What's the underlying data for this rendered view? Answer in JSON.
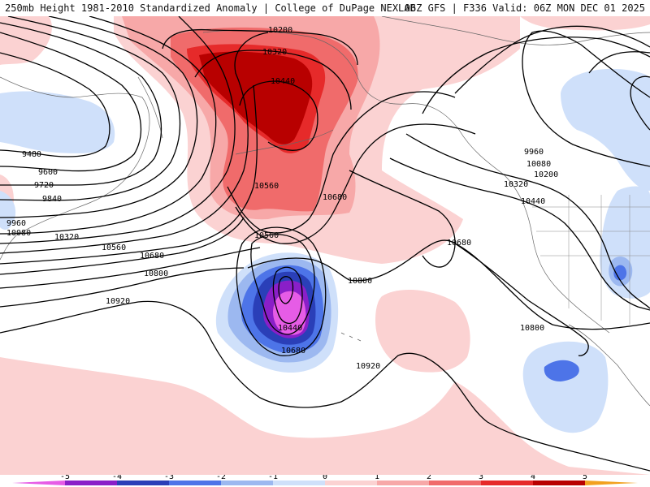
{
  "title": {
    "left": "250mb Height 1981-2010 Standardized Anomaly | College of DuPage NEXLAB",
    "right": "06Z GFS | F336 Valid: 06Z MON DEC 01 2025"
  },
  "colors": {
    "neg5": "#e65ce6",
    "neg4": "#8a1fc8",
    "neg3": "#2a3fb8",
    "neg2": "#4d74e8",
    "neg1": "#9cb8f0",
    "neg05": "#cfe0fa",
    "pos05": "#fbd2d2",
    "pos1": "#f7a8a8",
    "pos2": "#f06b6b",
    "pos3": "#e62a2a",
    "pos4": "#b80000",
    "pos5": "#f2a11f",
    "contour": "#000000",
    "coast": "#555555"
  },
  "contour_labels": [
    {
      "text": "10200",
      "id": "c10200-a"
    },
    {
      "text": "10320",
      "id": "c10320-a"
    },
    {
      "text": "10440",
      "id": "c10440-a"
    },
    {
      "text": "9480",
      "id": "c9480"
    },
    {
      "text": "9600",
      "id": "c9600"
    },
    {
      "text": "9720",
      "id": "c9720"
    },
    {
      "text": "9840",
      "id": "c9840"
    },
    {
      "text": "9960",
      "id": "c9960-w"
    },
    {
      "text": "10080",
      "id": "c10080-w"
    },
    {
      "text": "10320",
      "id": "c10320-w"
    },
    {
      "text": "10560",
      "id": "c10560-w"
    },
    {
      "text": "10680",
      "id": "c10680-w"
    },
    {
      "text": "10800",
      "id": "c10800-w"
    },
    {
      "text": "10920",
      "id": "c10920-w"
    },
    {
      "text": "10560",
      "id": "c10560-c"
    },
    {
      "text": "10680",
      "id": "c10680-c"
    },
    {
      "text": "10560",
      "id": "c10560-low"
    },
    {
      "text": "10440",
      "id": "c10440-low"
    },
    {
      "text": "10680",
      "id": "c10680-low"
    },
    {
      "text": "10800",
      "id": "c10800-c"
    },
    {
      "text": "10920",
      "id": "c10920-c"
    },
    {
      "text": "10680",
      "id": "c10680-e"
    },
    {
      "text": "9960",
      "id": "c9960-e"
    },
    {
      "text": "10080",
      "id": "c10080-e"
    },
    {
      "text": "10200",
      "id": "c10200-e"
    },
    {
      "text": "10320",
      "id": "c10320-e"
    },
    {
      "text": "10440",
      "id": "c10440-e"
    },
    {
      "text": "10800",
      "id": "c10800-e"
    }
  ],
  "colorbar": {
    "ticks": [
      "-5",
      "-4",
      "-3",
      "-2",
      "-1",
      "0",
      "1",
      "2",
      "3",
      "4",
      "5"
    ]
  }
}
